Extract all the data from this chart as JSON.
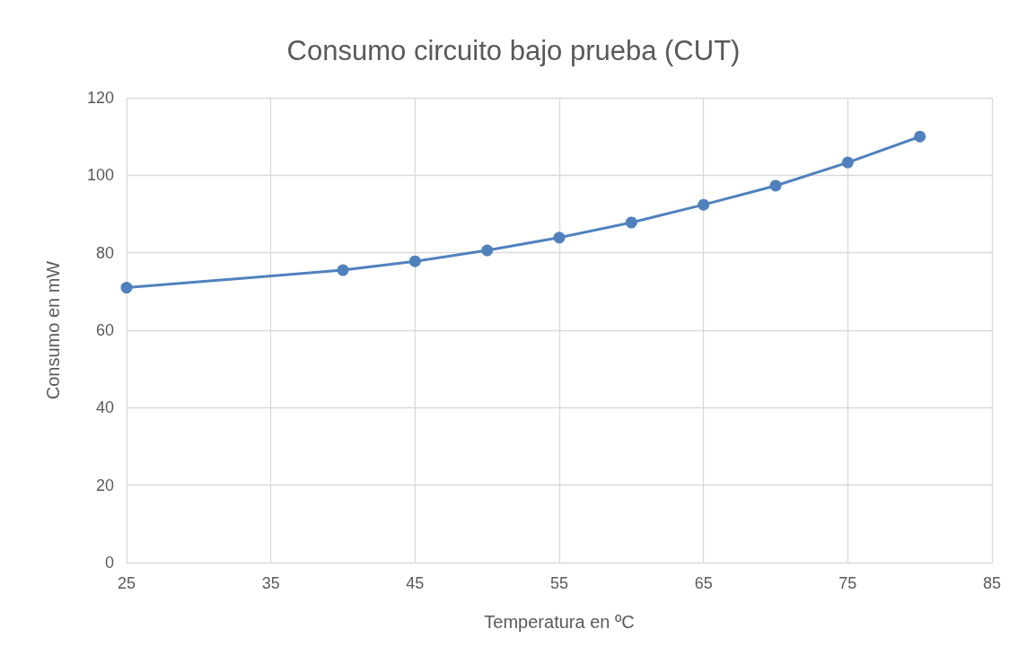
{
  "chart_data": {
    "type": "line",
    "title": "Consumo circuito bajo prueba (CUT)",
    "xlabel": "Temperatura en ºC",
    "ylabel": "Consumo en mW",
    "x": [
      25,
      40,
      45,
      50,
      55,
      60,
      65,
      70,
      75,
      80
    ],
    "series": [
      {
        "color": "#4f81bd",
        "values": [
          71,
          75.5,
          77.8,
          80.6,
          83.9,
          87.8,
          92.4,
          97.3,
          103.3,
          110
        ]
      }
    ],
    "xlim": [
      25,
      85
    ],
    "xticks": [
      25,
      35,
      45,
      55,
      65,
      75,
      85
    ],
    "ylim": [
      0,
      120
    ],
    "yticks": [
      0,
      20,
      40,
      60,
      80,
      100,
      120
    ],
    "grid": true,
    "marker": "circle",
    "line_style": "solid"
  }
}
